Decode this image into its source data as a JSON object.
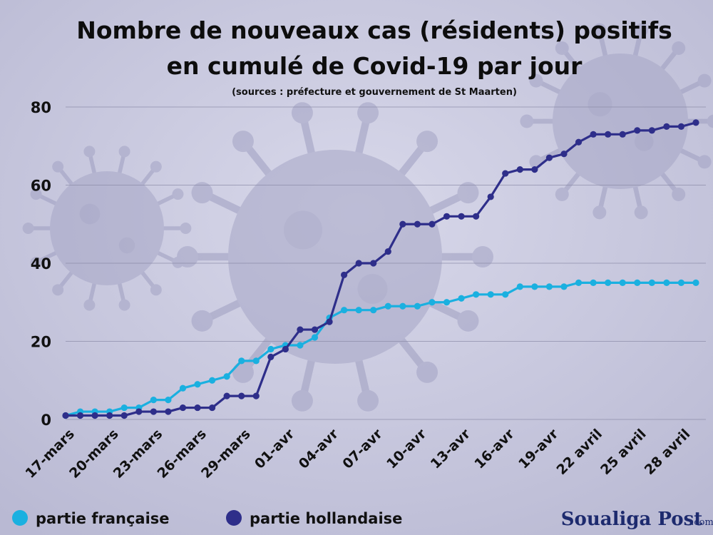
{
  "chart_data": {
    "type": "line",
    "title_lines": [
      "Nombre de nouveaux cas (résidents) positifs",
      "en cumulé de Covid-19  par jour"
    ],
    "subtitle": "(sources : préfecture et gouvernement de St Maarten)",
    "xlabel": "",
    "ylabel": "",
    "ylim": [
      0,
      80
    ],
    "y_ticks": [
      0,
      20,
      40,
      60,
      80
    ],
    "grid": true,
    "legend_position": "bottom-left",
    "x_tick_labels": [
      "17-mars",
      "20-mars",
      "23-mars",
      "26-mars",
      "29-mars",
      "01-avr",
      "04-avr",
      "07-avr",
      "10-avr",
      "13-avr",
      "16-avr",
      "19-avr",
      "22 avril",
      "25 avril",
      "28 avril"
    ],
    "x_tick_every": 3,
    "x": [
      "17-mars",
      "18-mars",
      "19-mars",
      "20-mars",
      "21-mars",
      "22-mars",
      "23-mars",
      "24-mars",
      "25-mars",
      "26-mars",
      "27-mars",
      "28-mars",
      "29-mars",
      "30-mars",
      "31-mars",
      "01-avr",
      "02-avr",
      "03-avr",
      "04-avr",
      "05-avr",
      "06-avr",
      "07-avr",
      "08-avr",
      "09-avr",
      "10-avr",
      "11-avr",
      "12-avr",
      "13-avr",
      "14-avr",
      "15-avr",
      "16-avr",
      "17-avr",
      "18-avr",
      "19-avr",
      "20-avr",
      "21-avr",
      "22 avril",
      "23 avril",
      "24 avril",
      "25 avril",
      "26 avril",
      "27 avril",
      "28 avril",
      "29 avril"
    ],
    "series": [
      {
        "name": "partie française",
        "color": "#1ab0e0",
        "values": [
          1,
          2,
          2,
          2,
          3,
          3,
          5,
          5,
          8,
          9,
          10,
          11,
          15,
          15,
          18,
          19,
          19,
          21,
          26,
          28,
          28,
          28,
          29,
          29,
          29,
          30,
          30,
          31,
          32,
          32,
          32,
          34,
          34,
          34,
          34,
          35,
          35,
          35,
          35,
          35,
          35,
          35,
          35,
          35
        ]
      },
      {
        "name": "partie hollandaise",
        "color": "#2e2e8a",
        "values": [
          1,
          1,
          1,
          1,
          1,
          2,
          2,
          2,
          3,
          3,
          3,
          6,
          6,
          6,
          16,
          18,
          23,
          23,
          25,
          37,
          40,
          40,
          43,
          50,
          50,
          50,
          52,
          52,
          52,
          57,
          63,
          64,
          64,
          67,
          68,
          71,
          73,
          73,
          73,
          74,
          74,
          75,
          75,
          76
        ]
      }
    ]
  },
  "brand": {
    "name": "Soualiga Post",
    "suffix": ".com"
  }
}
